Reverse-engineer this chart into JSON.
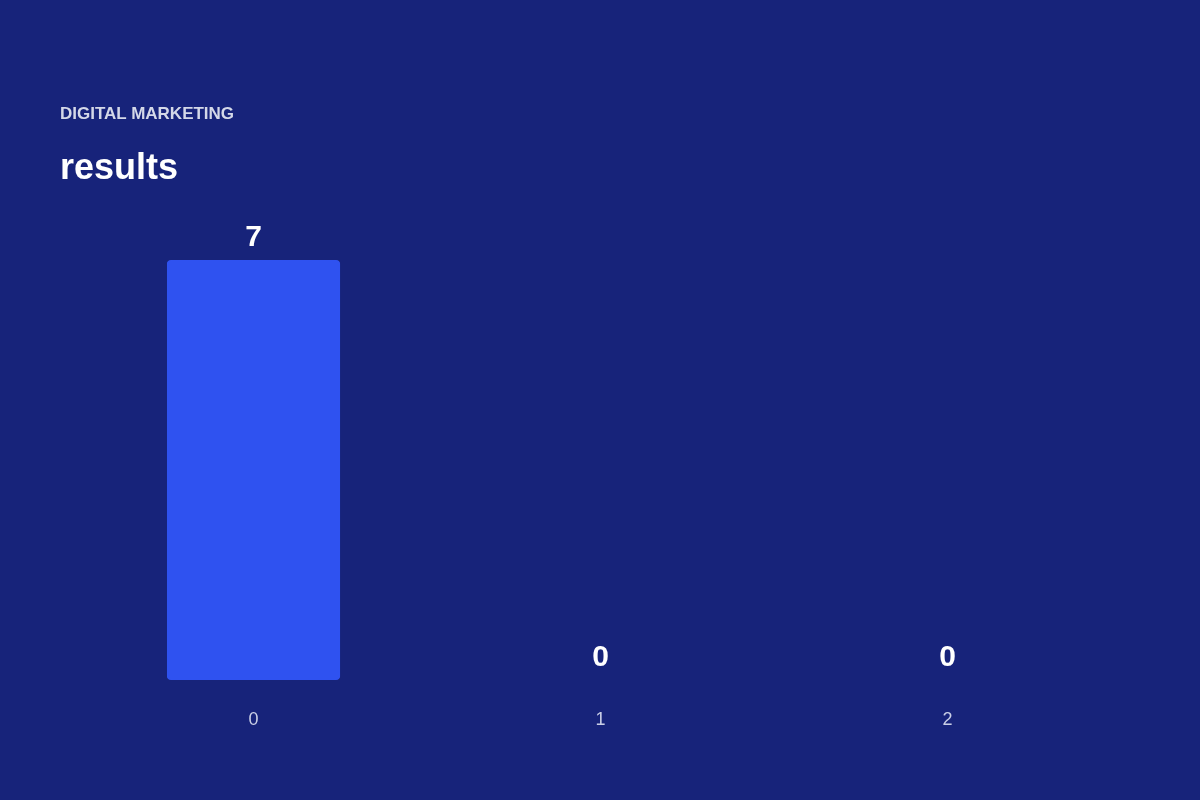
{
  "chart_data": {
    "type": "bar",
    "subtitle": "DIGITAL MARKETING",
    "title": "results",
    "categories": [
      "0",
      "1",
      "2"
    ],
    "values": [
      7,
      0,
      0
    ],
    "color": "#2f52f0",
    "data_labels": true
  }
}
